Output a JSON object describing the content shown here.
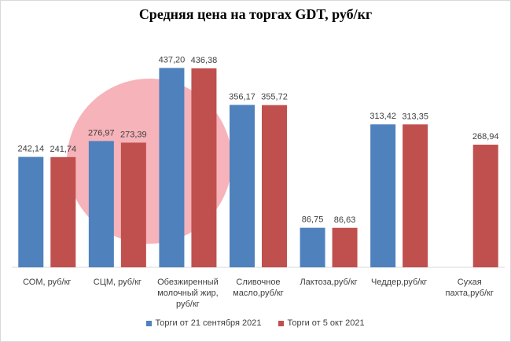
{
  "chart_data": {
    "type": "bar",
    "title": "Средняя цена на торгах GDT, руб/кг",
    "categories": [
      "СОМ, руб/кг",
      "СЦМ, руб/кг",
      "Обезжиренный молочный жир, руб/кг",
      "Сливочное масло,руб/кг",
      "Лактоза,руб/кг",
      "Чеддер,руб/кг",
      "Сухая пахта,руб/кг"
    ],
    "series": [
      {
        "name": "Торги от 21 сентября 2021",
        "color": "#4f81bd",
        "values": [
          242.14,
          276.97,
          437.2,
          356.17,
          86.75,
          313.42,
          null
        ],
        "value_labels": [
          "242,14",
          "276,97",
          "437,20",
          "356,17",
          "86,75",
          "313,42",
          null
        ]
      },
      {
        "name": "Торги от 5 окт 2021",
        "color": "#c0504d",
        "values": [
          241.74,
          273.39,
          436.38,
          355.72,
          86.63,
          313.35,
          268.94
        ],
        "value_labels": [
          "241,74",
          "273,39",
          "436,38",
          "355,72",
          "86,63",
          "313,35",
          "268,94"
        ]
      }
    ],
    "ylim": [
      0,
      450
    ],
    "legend": "bottom"
  }
}
